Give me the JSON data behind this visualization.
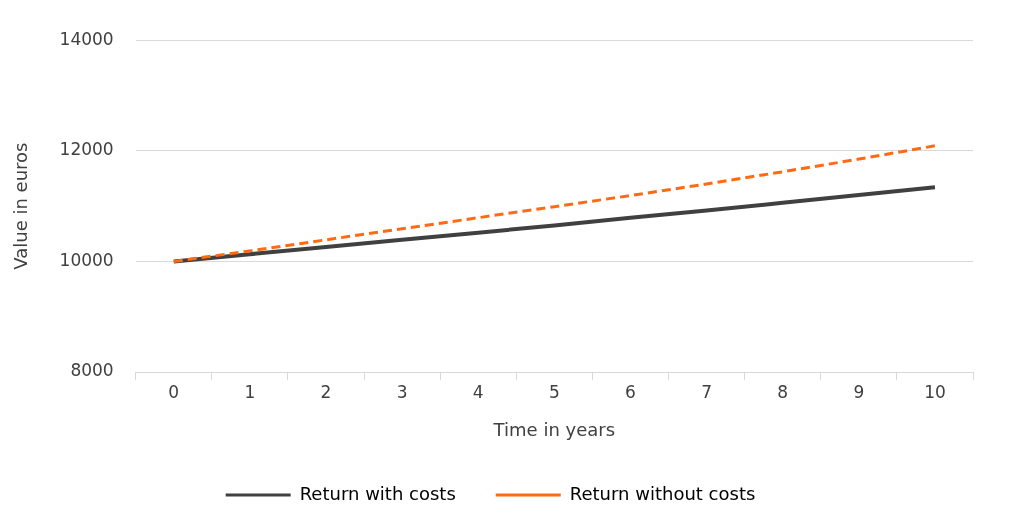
{
  "chart_data": {
    "type": "line",
    "xlabel": "Time in years",
    "ylabel": "Value in euros",
    "categories": [
      "0",
      "1",
      "2",
      "3",
      "4",
      "5",
      "6",
      "7",
      "8",
      "9",
      "10"
    ],
    "series": [
      {
        "name": "Return with costs",
        "color": "#404040",
        "line_style": "solid",
        "values": [
          10000,
          10130,
          10260,
          10390,
          10520,
          10650,
          10790,
          10920,
          11060,
          11200,
          11340
        ]
      },
      {
        "name": "Return without costs",
        "color": "#ff6a13",
        "line_style": "dashed",
        "values": [
          10000,
          10190,
          10390,
          10590,
          10790,
          10990,
          11190,
          11400,
          11620,
          11850,
          12090
        ]
      }
    ],
    "ylim": [
      8000,
      14000
    ],
    "yticks": [
      8000,
      10000,
      12000,
      14000
    ],
    "grid": "y",
    "legend": "bottom",
    "marker": "none"
  }
}
